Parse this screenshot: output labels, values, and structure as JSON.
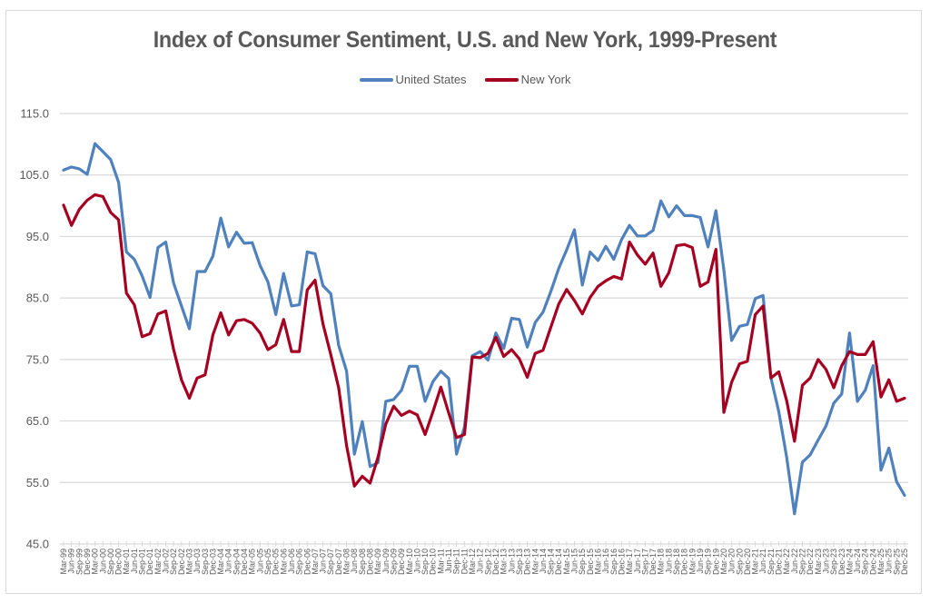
{
  "chart_data": {
    "type": "line",
    "title": "Index of Consumer Sentiment, U.S. and New York, 1999-Present",
    "xlabel": "",
    "ylabel": "",
    "ylim": [
      45,
      115
    ],
    "yticks": [
      "45.0",
      "55.0",
      "65.0",
      "75.0",
      "85.0",
      "95.0",
      "105.0",
      "115.0"
    ],
    "ytick_values": [
      45,
      55,
      65,
      75,
      85,
      95,
      105,
      115
    ],
    "grid": true,
    "legend_position": "top-center",
    "x": [
      "Mar-99",
      "Jun-99",
      "Sep-99",
      "Dec-99",
      "Mar-00",
      "Jun-00",
      "Sep-00",
      "Dec-00",
      "Mar-01",
      "Jun-01",
      "Sep-01",
      "Dec-01",
      "Mar-02",
      "Jun-02",
      "Sep-02",
      "Dec-02",
      "Mar-03",
      "Jun-03",
      "Sep-03",
      "Dec-03",
      "Mar-04",
      "Jun-04",
      "Sep-04",
      "Dec-04",
      "Mar-05",
      "Jun-05",
      "Sep-05",
      "Dec-05",
      "Mar-06",
      "Jun-06",
      "Sep-06",
      "Dec-06",
      "Mar-07",
      "Jun-07",
      "Sep-07",
      "Dec-07",
      "Mar-08",
      "Jun-08",
      "Sep-08",
      "Dec-08",
      "Mar-09",
      "Jun-09",
      "Sep-09",
      "Dec-09",
      "Mar-10",
      "Jun-10",
      "Sep-10",
      "Dec-10",
      "Mar-11",
      "Jun-11",
      "Sep-11",
      "Dec-11",
      "Mar-12",
      "Jun-12",
      "Sep-12",
      "Dec-12",
      "Mar-13",
      "Jun-13",
      "Sep-13",
      "Dec-13",
      "Mar-14",
      "Jun-14",
      "Sep-14",
      "Dec-14",
      "Mar-15",
      "Jun-15",
      "Sep-15",
      "Dec-15",
      "Mar-16",
      "Jun-16",
      "Sep-16",
      "Dec-16",
      "Mar-17",
      "Jun-17",
      "Sep-17",
      "Dec-17",
      "Mar-18",
      "Jun-18",
      "Sep-18",
      "Dec-18",
      "Mar-19",
      "Jun-19",
      "Sep-19",
      "Dec-19",
      "Mar-20",
      "Jun-20",
      "Sep-20",
      "Dec-20",
      "Mar-21",
      "Jun-21",
      "Sep-21",
      "Dec-21",
      "Mar-22",
      "Jun-22",
      "Sep-22",
      "Dec-22",
      "Mar-23",
      "Jun-23",
      "Sep-23",
      "Dec-23",
      "Mar-24",
      "Jun-24",
      "Sep-24",
      "Dec-24",
      "Mar-25",
      "Jun-25",
      "Sep-25",
      "Dec-25"
    ],
    "series": [
      {
        "name": "United States",
        "color": "#4f81bd",
        "values": [
          105.8,
          106.3,
          106.0,
          105.1,
          110.1,
          108.8,
          107.5,
          103.8,
          92.5,
          91.3,
          88.6,
          85.1,
          93.2,
          94.1,
          87.4,
          83.7,
          80.0,
          89.3,
          89.3,
          91.8,
          98.0,
          93.3,
          95.7,
          93.9,
          94.0,
          90.3,
          87.6,
          82.3,
          89.0,
          83.7,
          83.9,
          92.5,
          92.2,
          87.0,
          85.7,
          77.3,
          73.1,
          59.6,
          64.9,
          57.6,
          58.2,
          68.2,
          68.5,
          70.0,
          73.9,
          73.9,
          68.2,
          71.4,
          73.1,
          71.9,
          59.6,
          64.0,
          75.6,
          76.3,
          74.9,
          79.3,
          76.8,
          81.7,
          81.5,
          77.0,
          81.0,
          82.7,
          86.1,
          89.8,
          92.8,
          96.1,
          87.1,
          92.5,
          91.1,
          93.4,
          91.3,
          94.5,
          96.8,
          95.1,
          95.1,
          96.0,
          100.8,
          98.2,
          100.0,
          98.4,
          98.4,
          98.1,
          93.3,
          99.2,
          89.6,
          78.1,
          80.4,
          80.7,
          84.9,
          85.4,
          72.0,
          66.5,
          59.1,
          49.9,
          58.3,
          59.5,
          61.9,
          64.2,
          67.9,
          69.4,
          79.3,
          68.2,
          70.0,
          74.0,
          57.0,
          60.6,
          55.1,
          52.9
        ]
      },
      {
        "name": "New York",
        "color": "#a50021",
        "values": [
          100.1,
          96.8,
          99.4,
          100.9,
          101.8,
          101.5,
          98.9,
          97.7,
          85.8,
          83.9,
          78.7,
          79.2,
          82.4,
          82.9,
          76.6,
          71.7,
          68.7,
          72.0,
          72.5,
          79.0,
          82.6,
          79.0,
          81.3,
          81.5,
          80.9,
          79.3,
          76.6,
          77.4,
          81.5,
          76.3,
          76.3,
          86.3,
          87.9,
          80.8,
          75.8,
          70.4,
          61.0,
          54.4,
          56.0,
          54.9,
          59.1,
          64.5,
          67.4,
          65.9,
          66.6,
          66.0,
          62.8,
          66.5,
          70.5,
          66.3,
          62.3,
          62.8,
          75.4,
          75.3,
          76.0,
          78.6,
          75.5,
          76.6,
          75.1,
          72.1,
          76.0,
          76.5,
          80.3,
          84.0,
          86.4,
          84.6,
          82.4,
          85.1,
          86.9,
          87.8,
          88.5,
          88.1,
          94.1,
          92.0,
          90.5,
          92.3,
          86.9,
          89.1,
          93.5,
          93.7,
          93.2,
          86.9,
          87.6,
          92.9,
          66.4,
          71.3,
          74.3,
          74.7,
          82.3,
          83.7,
          72.0,
          73.0,
          68.3,
          61.7,
          70.8,
          72.0,
          75.0,
          73.4,
          70.4,
          74.0,
          76.3,
          75.8,
          75.8,
          77.9,
          68.9,
          71.7,
          68.2,
          68.7
        ]
      }
    ]
  }
}
